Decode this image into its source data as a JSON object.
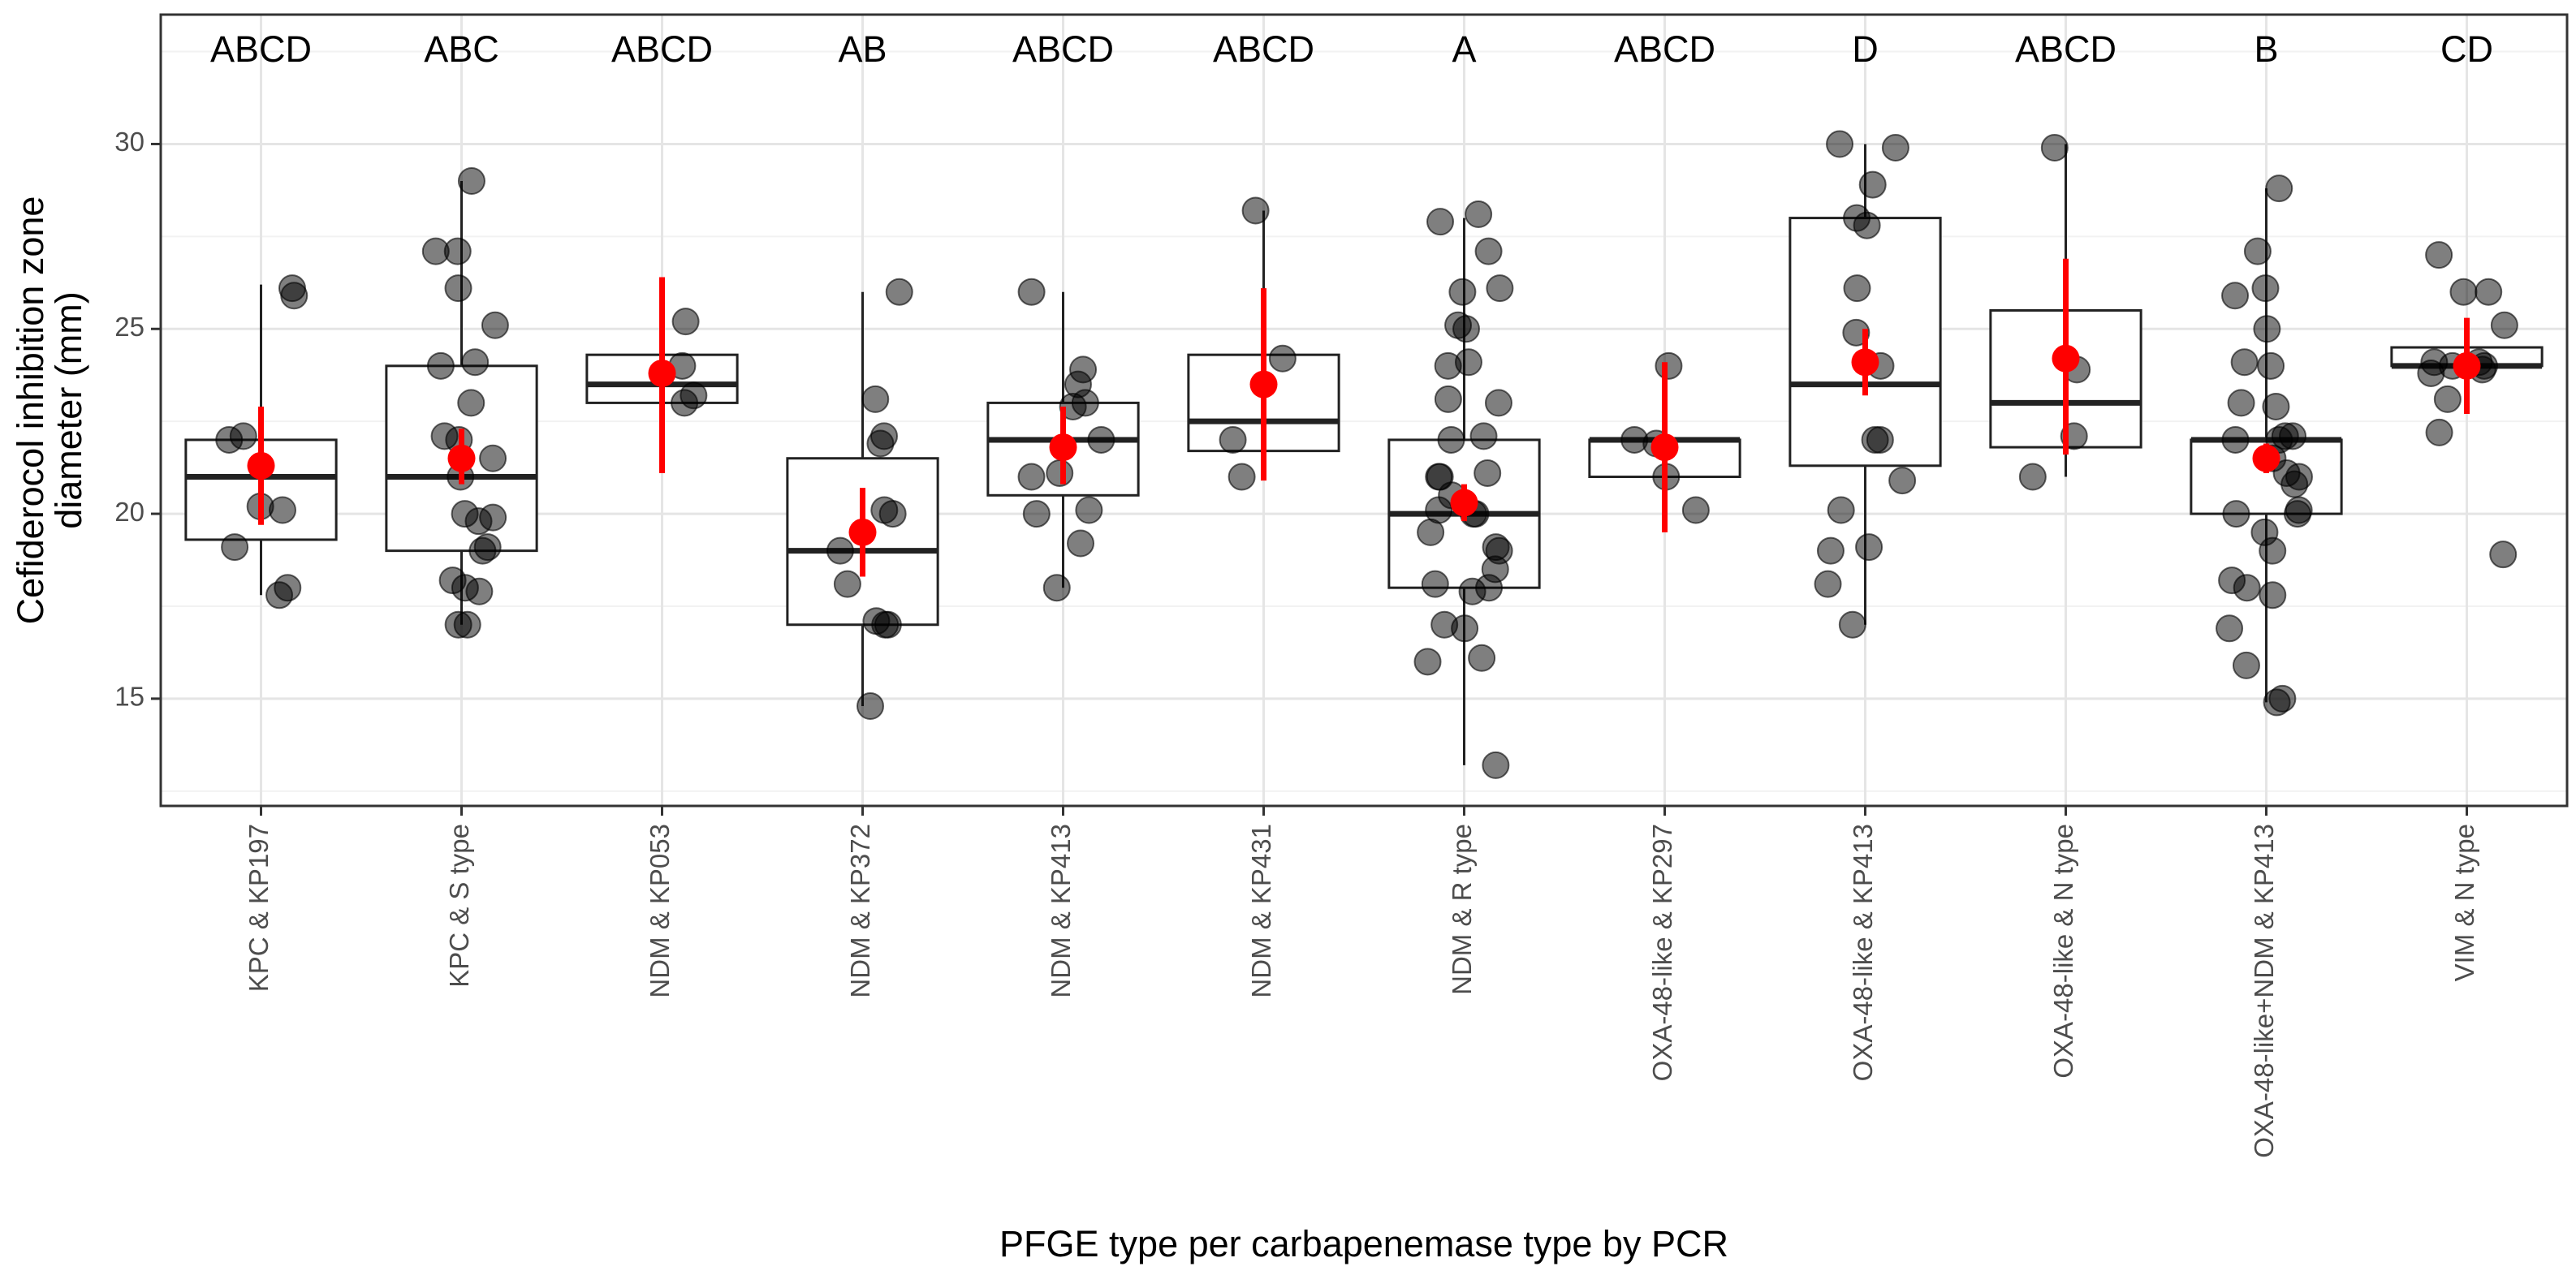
{
  "chart_data": {
    "type": "box",
    "title": "",
    "xlabel": "PFGE type per carbapenemase type by PCR",
    "ylabel_lines": [
      "Cefiderocol inhibition zone",
      "diameter (mm)"
    ],
    "y_ticks": [
      "15",
      "20",
      "25",
      "30"
    ],
    "ylim": [
      12.1,
      33.5
    ],
    "grid": true,
    "groups": [
      {
        "name": "KPC & KP197",
        "letters": "ABCD",
        "box": {
          "lower_whisker": 17.8,
          "q1": 19.3,
          "median": 21.0,
          "q3": 22.0,
          "upper_whisker": 26.2
        },
        "mean": 21.3,
        "ci": [
          19.7,
          22.9
        ],
        "points": [
          17.8,
          18.0,
          19.1,
          20.1,
          20.2,
          22.0,
          22.1,
          25.9,
          26.1
        ]
      },
      {
        "name": "KPC & S type",
        "letters": "ABC",
        "box": {
          "lower_whisker": 17.0,
          "q1": 19.0,
          "median": 21.0,
          "q3": 24.0,
          "upper_whisker": 29.0
        },
        "mean": 21.5,
        "ci": [
          20.8,
          22.3
        ],
        "points": [
          17.0,
          17.0,
          17.9,
          18.0,
          18.2,
          19.0,
          19.1,
          19.8,
          19.9,
          20.0,
          21.0,
          21.5,
          22.0,
          22.1,
          23.0,
          24.0,
          24.1,
          25.1,
          26.1,
          27.1,
          27.1,
          29.0
        ]
      },
      {
        "name": "NDM & KP053",
        "letters": "ABCD",
        "box": {
          "lower_whisker": 23.0,
          "q1": 23.0,
          "median": 23.5,
          "q3": 24.3,
          "upper_whisker": 24.3
        },
        "mean": 23.8,
        "ci": [
          21.1,
          26.4
        ],
        "points": [
          23.0,
          23.2,
          24.0,
          25.2
        ]
      },
      {
        "name": "NDM & KP372",
        "letters": "AB",
        "box": {
          "lower_whisker": 14.8,
          "q1": 17.0,
          "median": 19.0,
          "q3": 21.5,
          "upper_whisker": 26.0
        },
        "mean": 19.5,
        "ci": [
          18.3,
          20.7
        ],
        "points": [
          14.8,
          17.0,
          17.0,
          17.1,
          18.1,
          19.0,
          20.0,
          20.1,
          21.9,
          22.1,
          23.1,
          26.0
        ]
      },
      {
        "name": "NDM & KP413",
        "letters": "ABCD",
        "box": {
          "lower_whisker": 18.0,
          "q1": 20.5,
          "median": 22.0,
          "q3": 23.0,
          "upper_whisker": 26.0
        },
        "mean": 21.8,
        "ci": [
          20.8,
          22.9
        ],
        "points": [
          18.0,
          19.2,
          20.0,
          20.1,
          21.0,
          21.1,
          22.0,
          22.9,
          23.0,
          23.5,
          23.9,
          26.0
        ]
      },
      {
        "name": "NDM & KP431",
        "letters": "ABCD",
        "box": {
          "lower_whisker": 21.0,
          "q1": 21.7,
          "median": 22.5,
          "q3": 24.3,
          "upper_whisker": 28.2
        },
        "mean": 23.5,
        "ci": [
          20.9,
          26.1
        ],
        "points": [
          21.0,
          22.0,
          24.2,
          28.2
        ]
      },
      {
        "name": "NDM & R type",
        "letters": "A",
        "box": {
          "lower_whisker": 13.2,
          "q1": 18.0,
          "median": 20.0,
          "q3": 22.0,
          "upper_whisker": 28.0
        },
        "mean": 20.3,
        "ci": [
          19.8,
          20.8
        ],
        "points": [
          13.2,
          16.0,
          16.1,
          16.9,
          17.0,
          17.9,
          18.0,
          18.1,
          18.5,
          19.0,
          19.1,
          19.5,
          20.0,
          20.0,
          20.1,
          20.5,
          21.0,
          21.0,
          21.1,
          22.0,
          22.1,
          23.0,
          23.1,
          24.0,
          24.1,
          25.0,
          25.1,
          26.0,
          26.1,
          27.1,
          27.9,
          28.1
        ]
      },
      {
        "name": "OXA-48-like & KP297",
        "letters": "ABCD",
        "box": {
          "lower_whisker": 21.0,
          "q1": 21.0,
          "median": 22.0,
          "q3": 22.0,
          "upper_whisker": 22.0
        },
        "mean": 21.8,
        "ci": [
          19.5,
          24.1
        ],
        "points": [
          20.1,
          21.0,
          21.9,
          22.0,
          24.0
        ]
      },
      {
        "name": "OXA-48-like & KP413",
        "letters": "D",
        "box": {
          "lower_whisker": 17.0,
          "q1": 21.3,
          "median": 23.5,
          "q3": 28.0,
          "upper_whisker": 30.0
        },
        "mean": 24.1,
        "ci": [
          23.2,
          25.0
        ],
        "points": [
          17.0,
          18.1,
          19.0,
          19.1,
          20.1,
          20.9,
          22.0,
          22.0,
          24.0,
          24.9,
          26.1,
          27.8,
          28.0,
          28.9,
          29.9,
          30.0
        ]
      },
      {
        "name": "OXA-48-like & N type",
        "letters": "ABCD",
        "box": {
          "lower_whisker": 21.0,
          "q1": 21.8,
          "median": 23.0,
          "q3": 25.5,
          "upper_whisker": 30.0
        },
        "mean": 24.2,
        "ci": [
          21.6,
          26.9
        ],
        "points": [
          21.0,
          22.1,
          23.9,
          29.9
        ]
      },
      {
        "name": "OXA-48-like+NDM & KP413",
        "letters": "B",
        "box": {
          "lower_whisker": 14.9,
          "q1": 20.0,
          "median": 22.0,
          "q3": 22.0,
          "upper_whisker": 28.8
        },
        "mean": 21.5,
        "ci": [
          21.1,
          21.9
        ],
        "points": [
          14.9,
          15.0,
          15.9,
          16.9,
          17.8,
          18.0,
          18.2,
          19.0,
          19.5,
          20.0,
          20.0,
          20.1,
          20.8,
          21.0,
          21.1,
          21.5,
          22.0,
          22.0,
          22.1,
          22.1,
          22.9,
          23.0,
          24.0,
          24.1,
          25.0,
          25.9,
          26.1,
          27.1,
          28.8
        ]
      },
      {
        "name": "VIM & N type",
        "letters": "CD",
        "box": {
          "lower_whisker": 24.0,
          "q1": 24.0,
          "median": 24.0,
          "q3": 24.5,
          "upper_whisker": 24.5
        },
        "mean": 24.0,
        "ci": [
          22.7,
          25.3
        ],
        "points": [
          18.9,
          22.2,
          23.1,
          23.8,
          23.9,
          24.0,
          24.0,
          24.1,
          24.1,
          25.1,
          26.0,
          26.0,
          27.0
        ]
      }
    ]
  },
  "colors": {
    "point": "#000000",
    "mean": "#ff0000",
    "box_stroke": "#222222",
    "panel_border": "#333333"
  }
}
